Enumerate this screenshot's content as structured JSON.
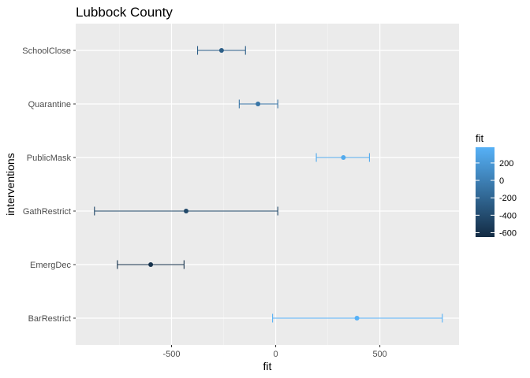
{
  "chart_data": {
    "type": "errorbar-point",
    "title": "Lubbock County",
    "xlabel": "fit",
    "ylabel": "interventions",
    "xlim": [
      -960,
      880
    ],
    "x_ticks": [
      -500,
      0,
      500
    ],
    "x_tick_labels": [
      "-500",
      "0",
      "500"
    ],
    "grid": true,
    "categories": [
      "SchoolClose",
      "Quarantine",
      "PublicMask",
      "GathRestrict",
      "EmergDec",
      "BarRestrict"
    ],
    "points": [
      {
        "category": "SchoolClose",
        "fit": -260,
        "lower": -375,
        "upper": -145
      },
      {
        "category": "Quarantine",
        "fit": -85,
        "lower": -175,
        "upper": 10
      },
      {
        "category": "PublicMask",
        "fit": 325,
        "lower": 195,
        "upper": 450
      },
      {
        "category": "GathRestrict",
        "fit": -430,
        "lower": -870,
        "upper": 10
      },
      {
        "category": "EmergDec",
        "fit": -600,
        "lower": -760,
        "upper": -440
      },
      {
        "category": "BarRestrict",
        "fit": 390,
        "lower": -15,
        "upper": 800
      }
    ],
    "legend": {
      "title": "fit",
      "position": "right",
      "ticks": [
        200,
        0,
        -200,
        -400,
        -600
      ],
      "tick_labels": [
        "200",
        "0",
        "-200",
        "-400",
        "-600"
      ],
      "range": [
        -650,
        380
      ],
      "color_low": "#132b43",
      "color_high": "#56b1f7"
    }
  }
}
